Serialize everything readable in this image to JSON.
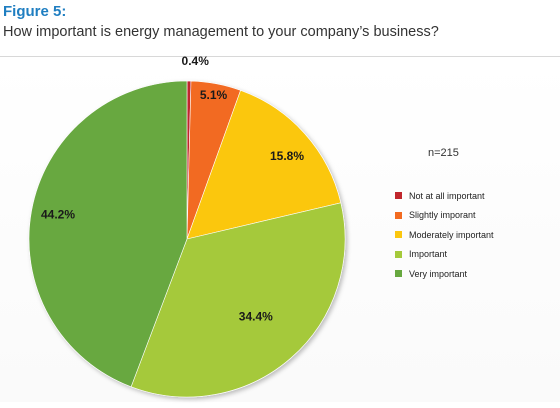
{
  "figure_label": "Figure 5:",
  "title": "How important is energy management to your company’s business?",
  "sample_note": "n=215",
  "chart_data": {
    "type": "pie",
    "title": "How important is energy management to your company’s business?",
    "start_angle": "12 o'clock, clockwise",
    "legend_position": "right",
    "slices": [
      {
        "label": "Not at all important",
        "value": 0.4,
        "value_label": "0.4%",
        "color": "#c0272d"
      },
      {
        "label": "Slightly imporant",
        "value": 5.1,
        "value_label": "5.1%",
        "color": "#f26b21"
      },
      {
        "label": "Moderately important",
        "value": 15.8,
        "value_label": "15.8%",
        "color": "#fbc70f"
      },
      {
        "label": "Important",
        "value": 34.4,
        "value_label": "34.4%",
        "color": "#a5c93a"
      },
      {
        "label": "Very important",
        "value": 44.2,
        "value_label": "44.2%",
        "color": "#67a83f"
      }
    ]
  }
}
